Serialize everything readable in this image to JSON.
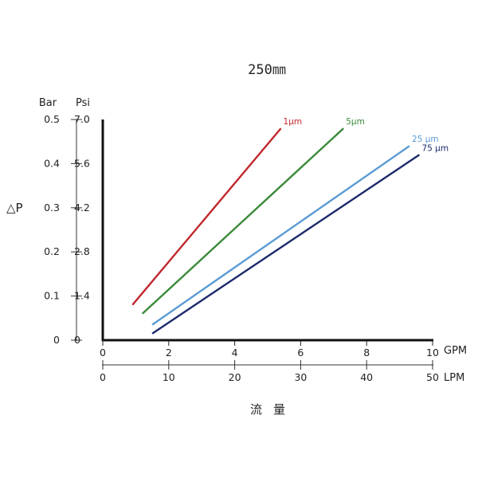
{
  "chart_data": {
    "type": "line",
    "title": "250㎜",
    "ylabel": "△P",
    "xlabel": "流量",
    "y_axes": [
      {
        "unit": "Bar",
        "range": [
          0,
          0.5
        ],
        "ticks": [
          "0",
          "0.1",
          "0.2",
          "0.3",
          "0.4",
          "0.5"
        ]
      },
      {
        "unit": "Psi",
        "range": [
          0,
          7.0
        ],
        "ticks": [
          "0",
          "1.4",
          "2.8",
          "4.2",
          "5.6",
          "7.0"
        ]
      }
    ],
    "x_axes": [
      {
        "unit": "GPM",
        "range": [
          0,
          10
        ],
        "ticks": [
          "0",
          "2",
          "4",
          "6",
          "8",
          "10"
        ]
      },
      {
        "unit": "LPM",
        "range": [
          0,
          50
        ],
        "ticks": [
          "0",
          "10",
          "20",
          "30",
          "40",
          "50"
        ]
      }
    ],
    "grid": false,
    "series": [
      {
        "name": "1μm",
        "color": "#c0272d",
        "x": [
          0.9,
          5.4
        ],
        "y": [
          0.08,
          0.48
        ]
      },
      {
        "name": "5μm",
        "color": "#3a8a3a",
        "x": [
          1.2,
          7.3
        ],
        "y": [
          0.06,
          0.48
        ]
      },
      {
        "name": "25 μm",
        "color": "#5b9bd5",
        "x": [
          1.5,
          9.3
        ],
        "y": [
          0.035,
          0.44
        ]
      },
      {
        "name": "75 μm",
        "color": "#1b2a6b",
        "x": [
          1.5,
          9.6
        ],
        "y": [
          0.015,
          0.42
        ]
      }
    ]
  }
}
